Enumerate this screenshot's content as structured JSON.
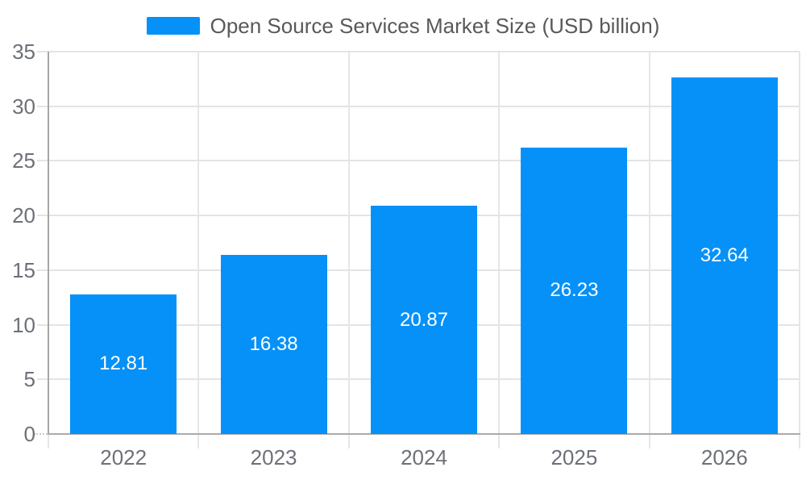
{
  "legend": {
    "label": "Open Source Services Market Size (USD billion)"
  },
  "colors": {
    "bar": "#0591f8",
    "grid": "#e4e4e4",
    "axis": "#a6a6a6",
    "tick_text": "#6e7079",
    "legend_text": "#595959",
    "value_text": "#ffffff"
  },
  "chart_data": {
    "type": "bar",
    "title": "Open Source Services Market Size (USD billion)",
    "categories": [
      "2022",
      "2023",
      "2024",
      "2025",
      "2026"
    ],
    "values": [
      12.81,
      16.38,
      20.87,
      26.23,
      32.64
    ],
    "xlabel": "",
    "ylabel": "",
    "ylim": [
      0,
      35
    ],
    "ytick_step": 5,
    "grid": true,
    "vertical_grid": true,
    "legend_position": "top-center",
    "value_labels": "inside-center"
  }
}
